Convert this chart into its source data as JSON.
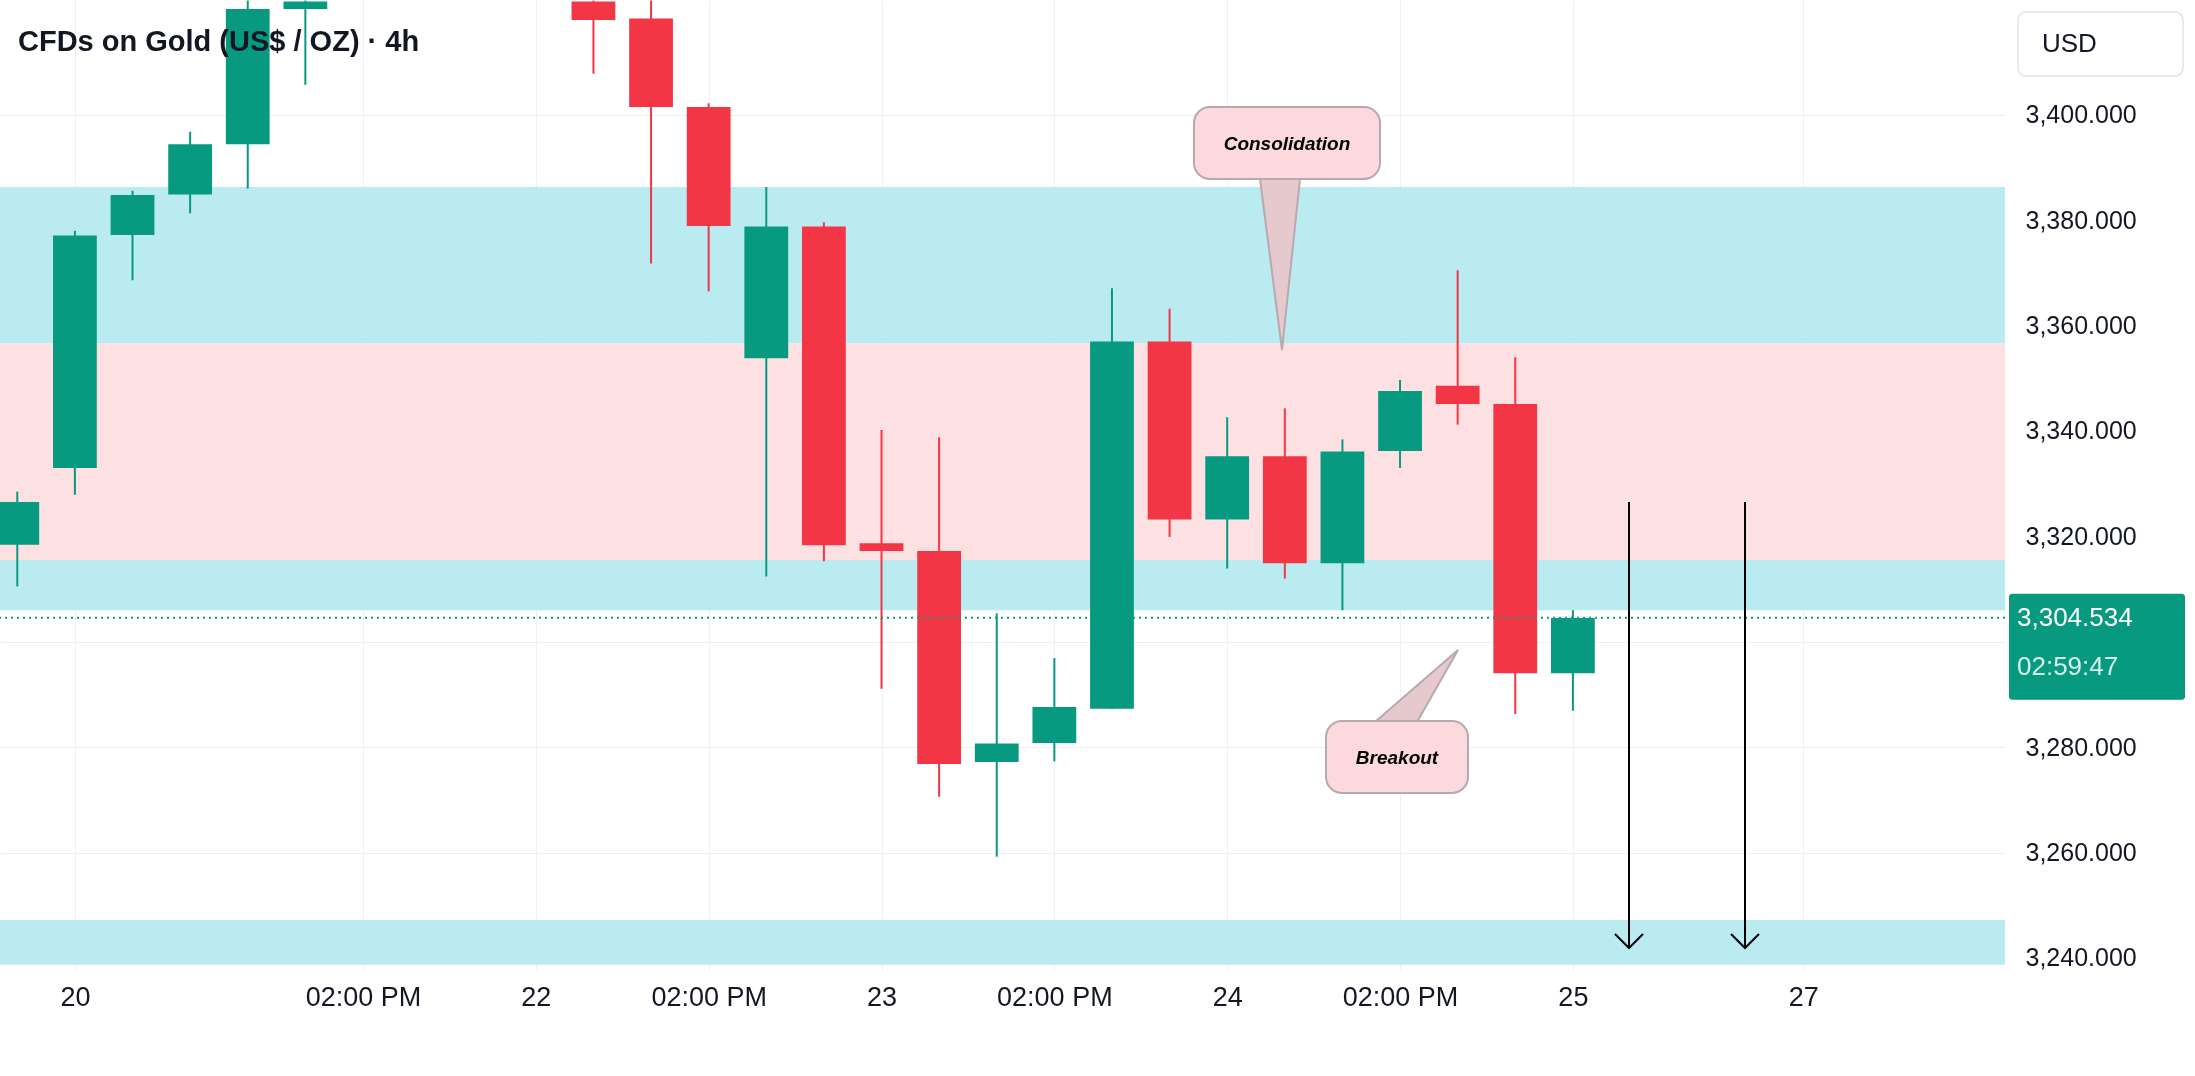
{
  "chart_data": {
    "type": "candlestick",
    "title": "CFDs on Gold (US$ / OZ) · 4h",
    "ylabel": "USD",
    "categories": [
      null,
      "20",
      null,
      null,
      null,
      null,
      "02:00 PM",
      null,
      null,
      "22",
      null,
      null,
      "02:00 PM",
      null,
      null,
      "23",
      null,
      null,
      "02:00 PM",
      null,
      null,
      "24",
      null,
      null,
      "02:00 PM",
      null,
      null,
      "25",
      null,
      null,
      null,
      "27",
      null,
      null,
      null
    ],
    "ohlc": [
      [
        3318.4,
        3328.5,
        3310.5,
        3326.5
      ],
      [
        3333.0,
        3378.0,
        3327.9,
        3377.1
      ],
      [
        3377.2,
        3385.6,
        3368.6,
        3384.8
      ],
      [
        3384.9,
        3396.8,
        3381.3,
        3394.4
      ],
      [
        3394.4,
        3421.7,
        3386.0,
        3420.1
      ],
      [
        3420.1,
        3421.7,
        3405.7,
        3421.5
      ],
      null,
      null,
      null,
      null,
      [
        3421.5,
        3421.7,
        3407.8,
        3418.0
      ],
      [
        3418.3,
        3421.7,
        3371.8,
        3401.5
      ],
      [
        3401.5,
        3402.2,
        3366.5,
        3378.9
      ],
      [
        3353.8,
        3386.3,
        3312.4,
        3378.8
      ],
      [
        3378.8,
        3379.6,
        3315.3,
        3318.3
      ],
      [
        3318.7,
        3340.2,
        3291.1,
        3317.2
      ],
      [
        3317.2,
        3338.8,
        3270.6,
        3276.8
      ],
      [
        3277.2,
        3305.4,
        3259.2,
        3280.7
      ],
      [
        3280.8,
        3296.9,
        3277.3,
        3287.6
      ],
      [
        3287.3,
        3367.1,
        3287.3,
        3357.0
      ],
      [
        3357.0,
        3363.2,
        3319.9,
        3323.2
      ],
      [
        3323.2,
        3342.6,
        3313.9,
        3335.2
      ],
      [
        3335.2,
        3344.3,
        3312.0,
        3314.9
      ],
      [
        3314.9,
        3338.4,
        3306.0,
        3336.1
      ],
      [
        3336.2,
        3349.7,
        3333.0,
        3347.6
      ],
      [
        3348.6,
        3370.5,
        3341.2,
        3345.1
      ],
      [
        3345.1,
        3354.0,
        3286.3,
        3294.0
      ],
      [
        3294.0,
        3306.0,
        3286.9,
        3304.5
      ],
      null,
      null,
      null,
      null,
      null,
      null,
      null
    ],
    "ylim": [
      3237.7,
      3421.8
    ],
    "yticks": [
      {
        "value": 3240,
        "label": "3,240.000"
      },
      {
        "value": 3260,
        "label": "3,260.000"
      },
      {
        "value": 3280,
        "label": "3,280.000"
      },
      {
        "value": 3300,
        "label": null
      },
      {
        "value": 3320,
        "label": "3,320.000"
      },
      {
        "value": 3340,
        "label": "3,340.000"
      },
      {
        "value": 3360,
        "label": "3,360.000"
      },
      {
        "value": 3380,
        "label": "3,380.000"
      },
      {
        "value": 3400,
        "label": "3,400.000"
      }
    ],
    "grid": true,
    "bands": [
      {
        "axis": "y",
        "from": 3238.7,
        "to": 3247.2,
        "color": "#b9ebf1"
      },
      {
        "axis": "y",
        "from": 3356.6,
        "to": 3386.3,
        "color": "#b9ebf1"
      },
      {
        "axis": "y",
        "from": 3306.0,
        "to": 3315.5,
        "color": "#b9ebf1"
      },
      {
        "axis": "y",
        "from": 3315.5,
        "to": 3356.6,
        "color": "#fde0e2"
      }
    ],
    "ref_lines": [
      {
        "axis": "y",
        "value": 3304.534,
        "label": "3,304.534",
        "color": "#089981",
        "line_style": "dotted"
      }
    ],
    "annotations": [
      "Consolidation",
      "Breakout",
      "02:59:47"
    ]
  }
}
